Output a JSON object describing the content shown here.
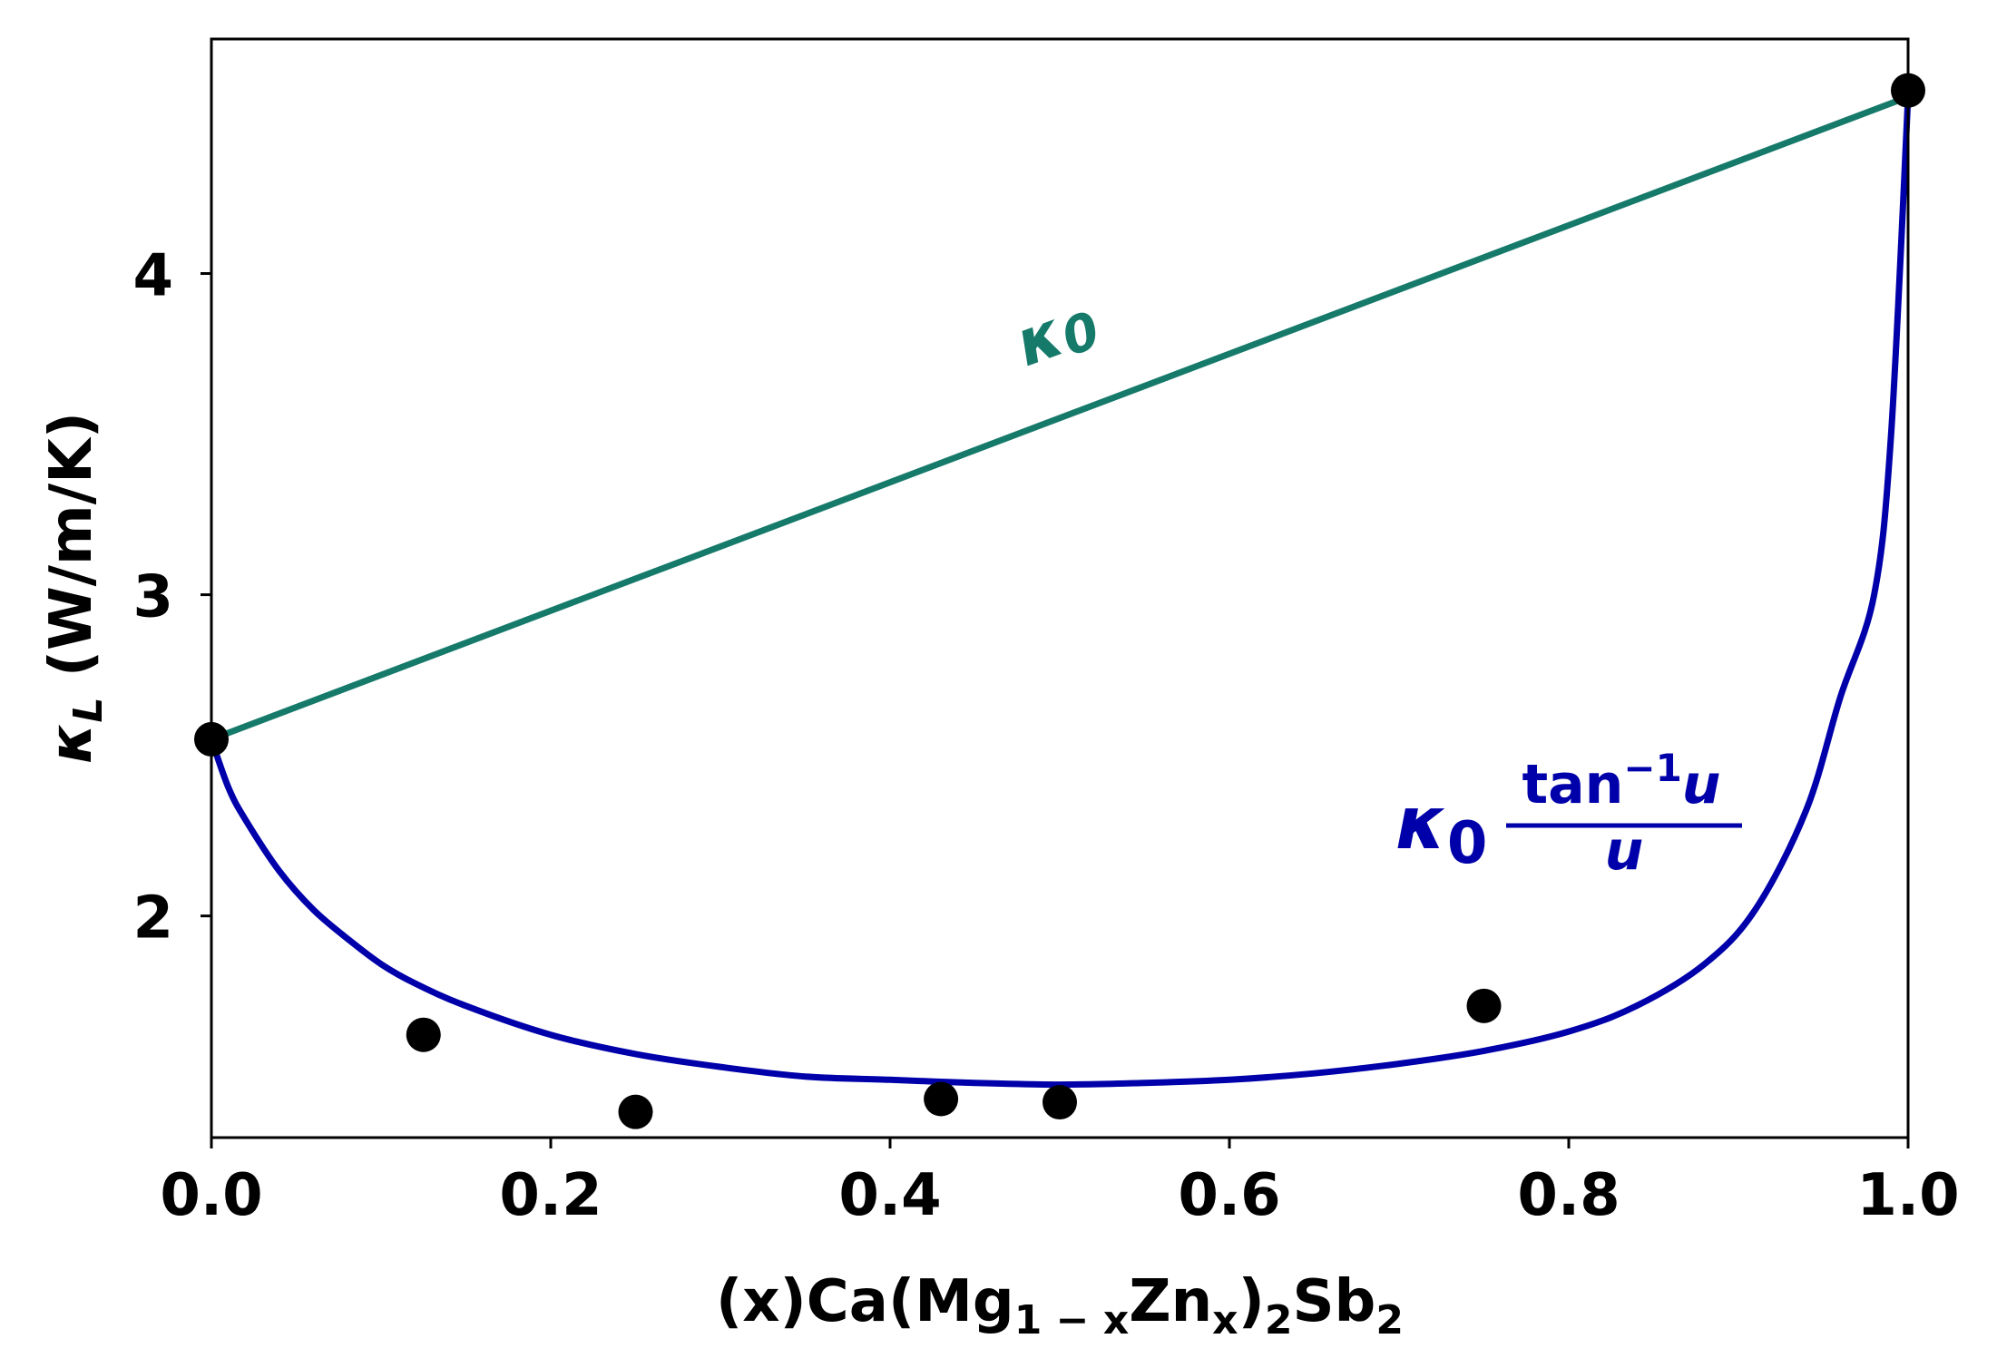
{
  "chart_data": {
    "type": "line",
    "xlim": [
      0.0,
      1.0
    ],
    "ylim": [
      1.31,
      4.73
    ],
    "grid": false,
    "legend": "none",
    "x_ticks": [
      0.0,
      0.2,
      0.4,
      0.6,
      0.8,
      1.0
    ],
    "x_tick_labels": [
      "0.0",
      "0.2",
      "0.4",
      "0.6",
      "0.8",
      "1.0"
    ],
    "y_ticks": [
      2,
      3,
      4
    ],
    "y_tick_labels": [
      "2",
      "3",
      "4"
    ],
    "xlabel": {
      "prefix": "(x)Ca(Mg",
      "sub1": "1 − x",
      "mid1": "Zn",
      "sub2": "x",
      "mid2": ")",
      "sub3": "2",
      "mid3": "Sb",
      "sub4": "2"
    },
    "ylabel": {
      "symbol": "κ",
      "sub": "L",
      "units": " (W/m/K)"
    },
    "colors": {
      "kappa0_line": "#167a6b",
      "fit_curve": "#0000aa",
      "points": "#000000"
    },
    "series": [
      {
        "kind": "line",
        "x": [
          0.0,
          1.0
        ],
        "y": [
          2.55,
          4.55
        ]
      },
      {
        "kind": "curve",
        "x": [
          0.0,
          0.01,
          0.02,
          0.04,
          0.06,
          0.08,
          0.1,
          0.12,
          0.15,
          0.2,
          0.25,
          0.3,
          0.35,
          0.4,
          0.45,
          0.5,
          0.55,
          0.6,
          0.65,
          0.7,
          0.75,
          0.8,
          0.84,
          0.88,
          0.91,
          0.94,
          0.96,
          0.98,
          0.99,
          1.0
        ],
        "y": [
          2.55,
          2.4,
          2.3,
          2.14,
          2.02,
          1.93,
          1.85,
          1.79,
          1.72,
          1.63,
          1.57,
          1.53,
          1.5,
          1.49,
          1.48,
          1.475,
          1.48,
          1.49,
          1.51,
          1.54,
          1.58,
          1.64,
          1.72,
          1.85,
          2.02,
          2.33,
          2.68,
          3.0,
          3.5,
          4.55
        ]
      },
      {
        "kind": "scatter",
        "x": [
          0.0,
          0.125,
          0.25,
          0.43,
          0.5,
          0.75,
          1.0
        ],
        "y": [
          2.55,
          1.63,
          1.39,
          1.43,
          1.42,
          1.72,
          4.57
        ]
      }
    ],
    "annotations": [
      {
        "symbol": "κ",
        "sub": "0",
        "x": 0.48,
        "y": 3.71,
        "rotation_deg": -20
      },
      {
        "symbol": "κ",
        "sub": "0",
        "numerator_base": "tan",
        "numerator_sup": "−1",
        "numerator_var": "u",
        "denominator": "u",
        "x": 0.7,
        "y": 2.15
      }
    ]
  }
}
